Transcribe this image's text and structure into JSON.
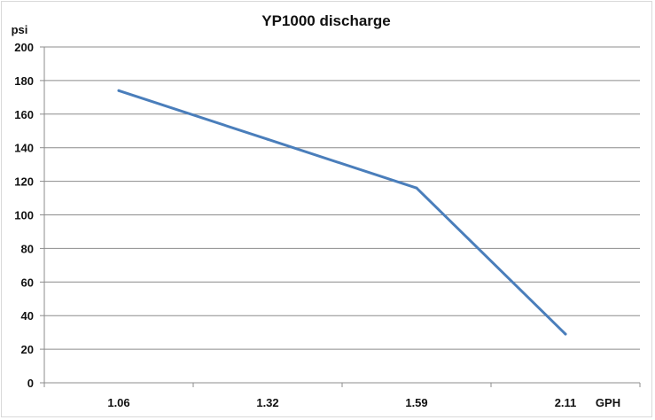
{
  "chart_data": {
    "type": "line",
    "title": "YP1000 discharge",
    "xlabel": "GPH",
    "ylabel": "psi",
    "categories": [
      "1.06",
      "1.32",
      "1.59",
      "2.11"
    ],
    "series": [
      {
        "values": [
          174,
          145,
          116,
          29
        ],
        "color": "#4a7ebb"
      }
    ],
    "ylim": [
      0,
      200
    ],
    "yticks": [
      "0",
      "20",
      "40",
      "60",
      "80",
      "100",
      "120",
      "140",
      "160",
      "180",
      "200"
    ],
    "grid": true,
    "legend": "none"
  }
}
